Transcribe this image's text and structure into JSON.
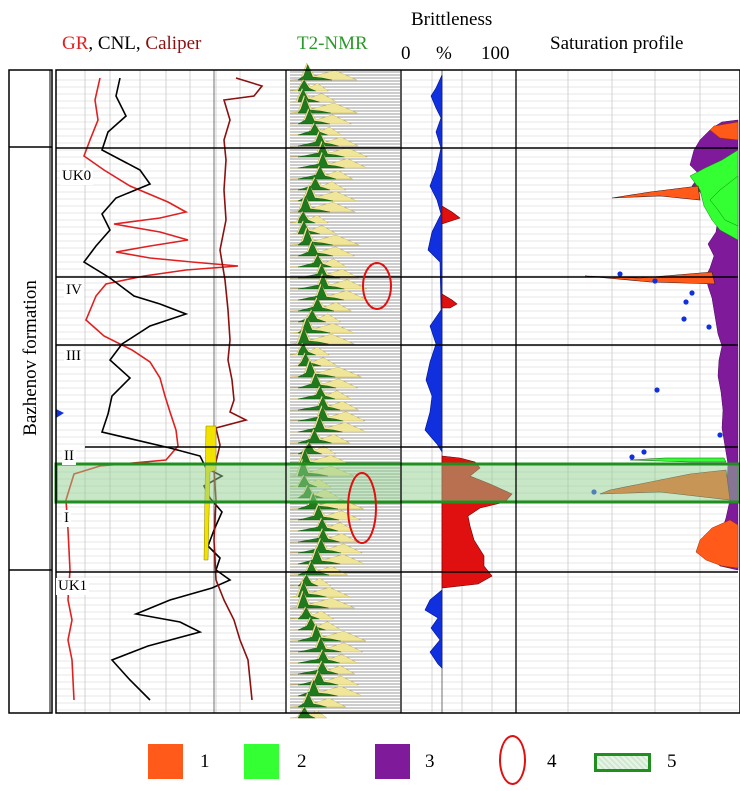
{
  "headers": {
    "gr": "GR",
    "comma1": ", ",
    "cnl": "CNL",
    "comma2": ", ",
    "caliper": "Caliper",
    "t2nmr": "T2-NMR",
    "brittleness": "Brittleness",
    "scale_min": "0",
    "scale_unit": "%",
    "scale_max": "100",
    "saturation": "Saturation profile"
  },
  "formation_label": "Bazhenov formation",
  "zones": [
    "UK0",
    "IV",
    "III",
    "II",
    "I",
    "UK1"
  ],
  "legend": [
    {
      "id": "1",
      "label": "1",
      "color": "#ff5a1a"
    },
    {
      "id": "2",
      "label": "2",
      "color": "#33ff33"
    },
    {
      "id": "3",
      "label": "3",
      "color": "#7f1a9a"
    },
    {
      "id": "4",
      "label": "4",
      "color": "#e01010"
    },
    {
      "id": "5",
      "label": "5",
      "color": "#1f8f1f"
    }
  ],
  "colors": {
    "gr": "#e02020",
    "cnl": "#000000",
    "caliper": "#8b1010",
    "t2nmr": "#2a9a2a",
    "brittle_blue": "#1030e0",
    "brittle_red": "#e01010",
    "highlight": "#8fcf8f"
  }
}
